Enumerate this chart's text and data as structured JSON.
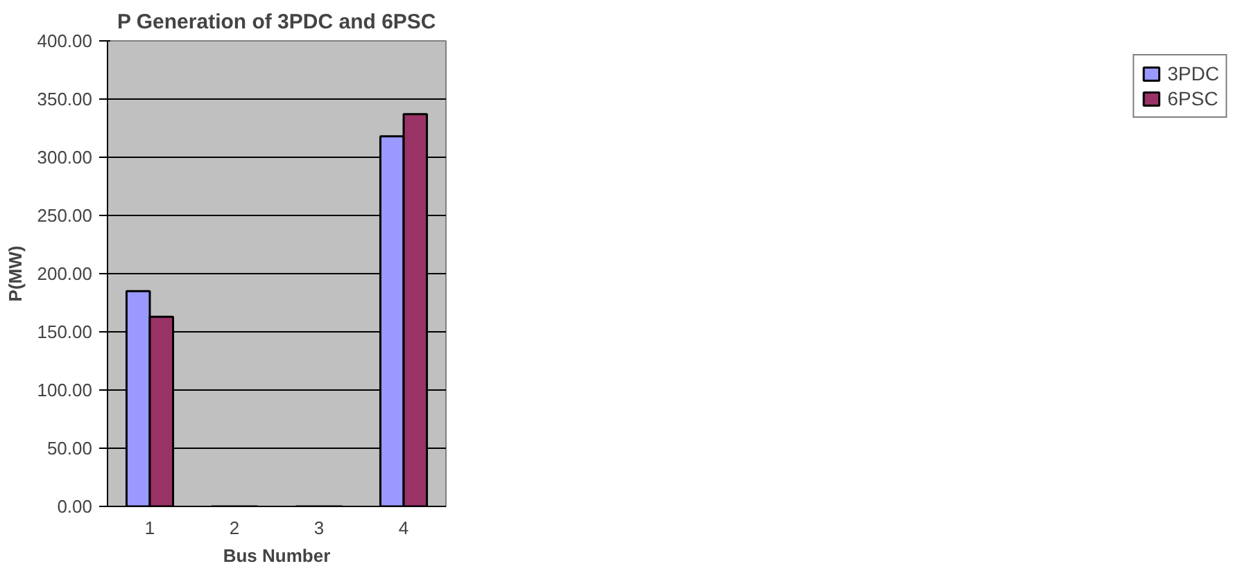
{
  "chart_data": {
    "type": "bar",
    "title": "P Generation of 3PDC and 6PSC",
    "xlabel": "Bus Number",
    "ylabel": "P(MW)",
    "categories": [
      "1",
      "2",
      "3",
      "4"
    ],
    "series": [
      {
        "name": "3PDC",
        "color": "#9999ff",
        "values": [
          185,
          0,
          0,
          318
        ]
      },
      {
        "name": "6PSC",
        "color": "#993366",
        "values": [
          163,
          0,
          0,
          337
        ]
      }
    ],
    "ylim": [
      0,
      400
    ],
    "yticks": [
      {
        "value": 0,
        "label": "0.00"
      },
      {
        "value": 50,
        "label": "50.00"
      },
      {
        "value": 100,
        "label": "100.00"
      },
      {
        "value": 150,
        "label": "150.00"
      },
      {
        "value": 200,
        "label": "200.00"
      },
      {
        "value": 250,
        "label": "250.00"
      },
      {
        "value": 300,
        "label": "300.00"
      },
      {
        "value": 350,
        "label": "350.00"
      },
      {
        "value": 400,
        "label": "400.00"
      }
    ],
    "grid": "y",
    "legend": "right"
  }
}
